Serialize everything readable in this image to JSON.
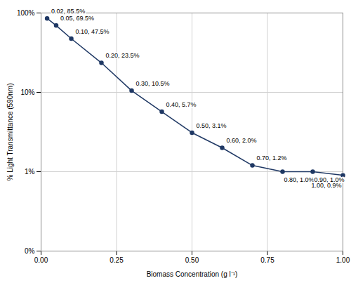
{
  "chart_data": {
    "type": "line",
    "x_label": "Biomass Concentration (g l⁻¹)",
    "y_label": "% Light Transmittance (590nm)",
    "x": [
      0.02,
      0.05,
      0.1,
      0.2,
      0.3,
      0.4,
      0.5,
      0.6,
      0.7,
      0.8,
      0.9,
      1.0
    ],
    "values": [
      85.5,
      69.5,
      47.5,
      23.5,
      10.5,
      5.7,
      3.1,
      2.0,
      1.2,
      1.0,
      1.0,
      0.9
    ],
    "value_labels": [
      "0.02, 85.5%",
      "0.05, 69.5%",
      "0.10, 47.5%",
      "0.20, 23.5%",
      "0.30, 10.5%",
      "0.40, 5.7%",
      "0.50, 3.1%",
      "0.60, 2.0%",
      "0.70, 1.2%",
      "0.80, 1.0%",
      "0.90, 1.0%",
      "1.00, 0.9%"
    ],
    "color": "#1f3864",
    "marker": "circle",
    "xlim": [
      0,
      1
    ],
    "xticks": [
      {
        "value": 0,
        "label": "0.00"
      },
      {
        "value": 0.25,
        "label": "0.25"
      },
      {
        "value": 0.5,
        "label": "0.50"
      },
      {
        "value": 0.75,
        "label": "0.75"
      },
      {
        "value": 1,
        "label": "1.00"
      }
    ],
    "ylim": [
      0.1,
      100
    ],
    "yticks": [
      {
        "value": 0.1,
        "label": "0%"
      },
      {
        "value": 1,
        "label": "1%"
      },
      {
        "value": 10,
        "label": "10%"
      },
      {
        "value": 100,
        "label": "100%"
      }
    ],
    "log": "y",
    "grid": true,
    "data_labels": true
  }
}
